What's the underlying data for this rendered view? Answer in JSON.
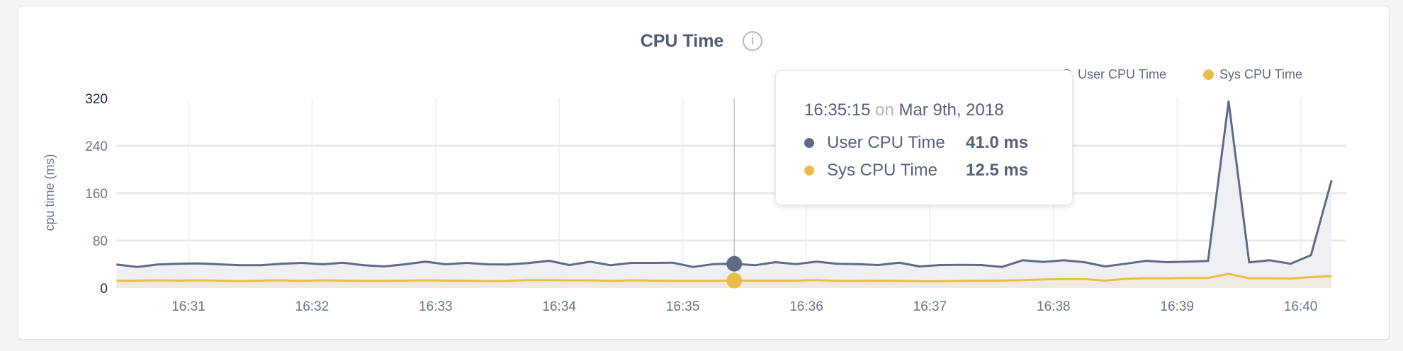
{
  "colors": {
    "user": "#5f6a85",
    "sys": "#ebbd48",
    "user_fill": "#eef0f3",
    "sys_fill": "#efebe1",
    "grid": "#e8e8e8"
  },
  "header": {
    "title": "CPU Time",
    "info_icon": "info-circle-icon",
    "info_glyph": "i"
  },
  "legend": [
    {
      "label": "User CPU Time"
    },
    {
      "label": "Sys CPU Time"
    }
  ],
  "tooltip": {
    "time": "16:35:15",
    "on": "on",
    "date": "Mar 9th, 2018",
    "rows": [
      {
        "label": "User CPU Time",
        "value": "41.0 ms"
      },
      {
        "label": "Sys CPU Time",
        "value": "12.5 ms"
      }
    ]
  },
  "chart_data": {
    "type": "area",
    "title": "CPU Time",
    "ylabel": "cpu time (ms)",
    "xlabel": "",
    "ylim": [
      0,
      320
    ],
    "yticks": [
      "0",
      "80",
      "160",
      "240",
      "320"
    ],
    "xticks": [
      "16:31",
      "16:32",
      "16:33",
      "16:34",
      "16:35",
      "16:36",
      "16:37",
      "16:38",
      "16:39",
      "16:40"
    ],
    "x_start": "16:30:25",
    "x_step_seconds": 10,
    "hover_index": 30,
    "grid": true,
    "legend_position": "top-right",
    "series": [
      {
        "name": "User CPU Time",
        "values": [
          39.6,
          35.6,
          39.6,
          41,
          41.6,
          40,
          38.4,
          38.4,
          41,
          42.4,
          40,
          42.8,
          38.4,
          36.4,
          40,
          44.4,
          40,
          42.4,
          40,
          39.6,
          42,
          46,
          38.8,
          44.4,
          38.4,
          42.4,
          42.4,
          42.8,
          35.6,
          40.4,
          41,
          38.4,
          43.6,
          40.4,
          44.4,
          41,
          40.4,
          38.8,
          42.8,
          36.4,
          38.8,
          39.2,
          38.8,
          35.6,
          46.8,
          44,
          46.8,
          43.6,
          36.4,
          41,
          46,
          43.6,
          44.4,
          45.6,
          315,
          43.2,
          46.8,
          41,
          55.4,
          182
        ]
      },
      {
        "name": "Sys CPU Time",
        "values": [
          12,
          12.5,
          13,
          12.5,
          13,
          12.5,
          11.5,
          12.5,
          13,
          12,
          13,
          12.5,
          12,
          12,
          12.5,
          13,
          12.5,
          12.5,
          11.5,
          12,
          13.5,
          13.5,
          13,
          13,
          12,
          13,
          12.5,
          12,
          12,
          12,
          12.5,
          12.5,
          12.5,
          12.5,
          13.5,
          12,
          12,
          12.5,
          12,
          11.5,
          11.5,
          12,
          12.5,
          12.5,
          13.5,
          14.5,
          15,
          15,
          12.5,
          15.5,
          16.5,
          16.5,
          17,
          17,
          24,
          16.5,
          16.5,
          16,
          18.5,
          20
        ]
      }
    ]
  }
}
